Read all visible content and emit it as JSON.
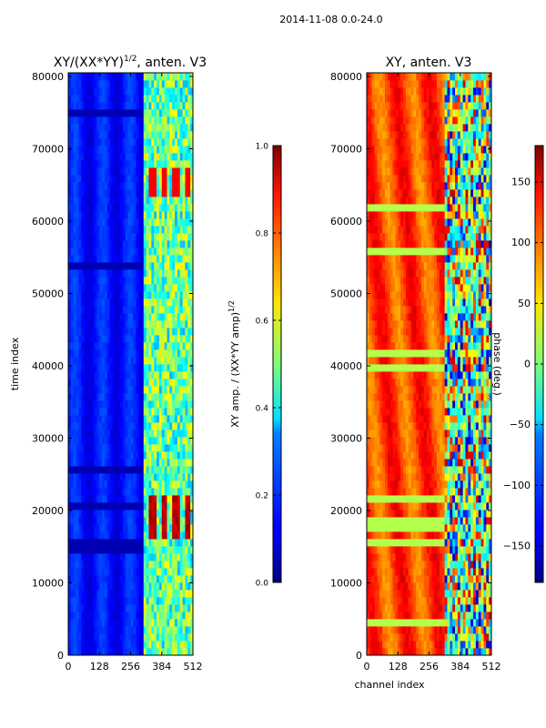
{
  "figure": {
    "suptitle": "2014-11-08 0.0-24.0"
  },
  "chart_data": [
    {
      "type": "heatmap",
      "title": "XY/(XX*YY)",
      "title_sup": "1/2",
      "title_suffix": ", anten. V3",
      "xlabel": "",
      "ylabel": "time index",
      "xlim": [
        0,
        512
      ],
      "ylim": [
        0,
        80500
      ],
      "xticks": [
        0,
        128,
        256,
        384,
        512
      ],
      "yticks": [
        0,
        10000,
        20000,
        30000,
        40000,
        50000,
        60000,
        70000,
        80000
      ],
      "colorbar": {
        "label": "XY amp. / (XX*YY amp)",
        "label_sup": "1/2",
        "range": [
          0.0,
          1.0
        ],
        "ticks": [
          "0.0",
          "0.2",
          "0.4",
          "0.6",
          "0.8",
          "1.0"
        ],
        "tick_values": [
          0.0,
          0.2,
          0.4,
          0.6,
          0.8,
          1.0
        ],
        "colormap": "jet"
      }
    },
    {
      "type": "heatmap",
      "title": "XY, anten. V3",
      "xlabel": "channel index",
      "ylabel": "",
      "xlim": [
        0,
        512
      ],
      "ylim": [
        0,
        80500
      ],
      "xticks": [
        0,
        128,
        256,
        384,
        512
      ],
      "yticks": [
        0,
        10000,
        20000,
        30000,
        40000,
        50000,
        60000,
        70000,
        80000
      ],
      "colorbar": {
        "label": "phase (deg.)",
        "range": [
          -180,
          180
        ],
        "ticks": [
          "−150",
          "−100",
          "−50",
          "0",
          "50",
          "100",
          "150"
        ],
        "tick_values": [
          -150,
          -100,
          -50,
          0,
          50,
          100,
          150
        ],
        "colormap": "jet"
      }
    }
  ]
}
